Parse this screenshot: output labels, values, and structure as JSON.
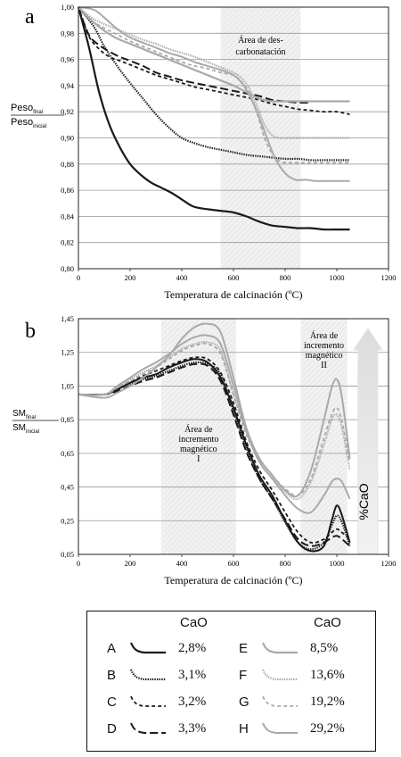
{
  "panel_a_letter": "a",
  "panel_b_letter": "b",
  "chart_data": [
    {
      "type": "line",
      "panel": "a",
      "ylabel_main": "Peso",
      "ylabel_main_sub": "final",
      "ylabel_den": "Peso",
      "ylabel_den_sub": "inicial",
      "xlabel": "Temperatura de calcinación (ºC)",
      "xlim": [
        0,
        1200
      ],
      "ylim": [
        0.8,
        1.0
      ],
      "x_ticks": [
        "0",
        "200",
        "400",
        "600",
        "800",
        "1000",
        "1200"
      ],
      "y_ticks": [
        "0,80",
        "0,82",
        "0,84",
        "0,86",
        "0,88",
        "0,90",
        "0,92",
        "0,94",
        "0,96",
        "0,98",
        "1,00"
      ],
      "grid": "horizontal",
      "region": {
        "x0": 550,
        "x1": 860,
        "label_line1": "Área de des-",
        "label_line2": "carbonatación"
      },
      "series": [
        {
          "name": "A",
          "color": "#1a1a1a",
          "style": "solid",
          "width": 2.2,
          "x": [
            0,
            40,
            80,
            120,
            160,
            200,
            240,
            280,
            320,
            360,
            400,
            440,
            480,
            520,
            560,
            600,
            650,
            700,
            750,
            800,
            850,
            900,
            950,
            1000,
            1050
          ],
          "y": [
            1.0,
            0.97,
            0.935,
            0.91,
            0.893,
            0.88,
            0.872,
            0.866,
            0.862,
            0.858,
            0.853,
            0.848,
            0.846,
            0.845,
            0.844,
            0.843,
            0.84,
            0.836,
            0.833,
            0.832,
            0.831,
            0.831,
            0.83,
            0.83,
            0.83
          ]
        },
        {
          "name": "B",
          "color": "#1a1a1a",
          "style": "dotted-dense",
          "width": 2.2,
          "x": [
            0,
            60,
            100,
            150,
            200,
            250,
            300,
            350,
            400,
            450,
            500,
            550,
            600,
            650,
            700,
            750,
            800,
            850,
            900,
            950,
            1000,
            1050
          ],
          "y": [
            1.0,
            0.985,
            0.97,
            0.955,
            0.942,
            0.93,
            0.918,
            0.908,
            0.9,
            0.896,
            0.893,
            0.891,
            0.889,
            0.887,
            0.886,
            0.885,
            0.884,
            0.884,
            0.883,
            0.883,
            0.883,
            0.883
          ]
        },
        {
          "name": "C",
          "color": "#1a1a1a",
          "style": "dashed-short",
          "width": 1.8,
          "x": [
            0,
            40,
            80,
            120,
            160,
            200,
            250,
            300,
            350,
            400,
            450,
            500,
            550,
            600,
            650,
            700,
            750,
            800,
            850,
            900,
            950,
            1000,
            1050
          ],
          "y": [
            1.0,
            0.978,
            0.968,
            0.962,
            0.959,
            0.956,
            0.952,
            0.948,
            0.945,
            0.942,
            0.939,
            0.937,
            0.935,
            0.933,
            0.931,
            0.929,
            0.926,
            0.924,
            0.922,
            0.921,
            0.92,
            0.92,
            0.918
          ]
        },
        {
          "name": "D",
          "color": "#1a1a1a",
          "style": "dashed-long",
          "width": 2.0,
          "x": [
            0,
            40,
            80,
            120,
            160,
            200,
            250,
            300,
            350,
            400,
            450,
            500,
            550,
            600,
            650,
            700,
            750,
            800,
            850,
            900
          ],
          "y": [
            1.0,
            0.979,
            0.971,
            0.966,
            0.962,
            0.959,
            0.955,
            0.95,
            0.947,
            0.944,
            0.942,
            0.94,
            0.938,
            0.936,
            0.934,
            0.932,
            0.929,
            0.928,
            0.927,
            0.927
          ]
        },
        {
          "name": "E",
          "color": "#a9a9a9",
          "style": "solid",
          "width": 2.2,
          "x": [
            0,
            50,
            100,
            150,
            200,
            250,
            300,
            350,
            400,
            450,
            500,
            550,
            600,
            650,
            700,
            750,
            800,
            850,
            900,
            950,
            1000,
            1050
          ],
          "y": [
            1.0,
            0.99,
            0.982,
            0.976,
            0.972,
            0.968,
            0.964,
            0.96,
            0.956,
            0.952,
            0.948,
            0.944,
            0.94,
            0.935,
            0.93,
            0.928,
            0.928,
            0.928,
            0.928,
            0.928,
            0.928,
            0.928
          ]
        },
        {
          "name": "F",
          "color": "#a9a9a9",
          "style": "dotted-dense",
          "width": 2.2,
          "x": [
            0,
            50,
            100,
            150,
            200,
            250,
            300,
            350,
            400,
            450,
            500,
            550,
            600,
            630,
            660,
            690,
            720,
            750,
            780,
            820,
            860,
            900,
            950,
            1000,
            1050
          ],
          "y": [
            1.0,
            0.992,
            0.987,
            0.983,
            0.979,
            0.975,
            0.972,
            0.968,
            0.965,
            0.962,
            0.958,
            0.954,
            0.95,
            0.946,
            0.938,
            0.925,
            0.91,
            0.902,
            0.9,
            0.9,
            0.9,
            0.9,
            0.9,
            0.9,
            0.9
          ]
        },
        {
          "name": "G",
          "color": "#a9a9a9",
          "style": "dashed-short",
          "width": 1.8,
          "x": [
            0,
            50,
            100,
            150,
            200,
            250,
            300,
            350,
            400,
            450,
            500,
            550,
            600,
            630,
            660,
            690,
            720,
            750,
            780,
            820,
            860,
            900,
            950,
            1000,
            1050
          ],
          "y": [
            1.0,
            0.99,
            0.984,
            0.979,
            0.974,
            0.97,
            0.966,
            0.962,
            0.958,
            0.955,
            0.953,
            0.95,
            0.948,
            0.943,
            0.935,
            0.92,
            0.9,
            0.888,
            0.882,
            0.881,
            0.881,
            0.881,
            0.881,
            0.881,
            0.881
          ]
        },
        {
          "name": "H",
          "color": "#a9a9a9",
          "style": "solid",
          "width": 2.0,
          "x": [
            0,
            60,
            100,
            140,
            180,
            220,
            260,
            300,
            350,
            400,
            450,
            500,
            550,
            600,
            640,
            680,
            720,
            760,
            800,
            840,
            880,
            920,
            960,
            1000,
            1050
          ],
          "y": [
            1.0,
            0.998,
            0.992,
            0.985,
            0.979,
            0.975,
            0.972,
            0.969,
            0.965,
            0.962,
            0.958,
            0.955,
            0.952,
            0.948,
            0.94,
            0.925,
            0.905,
            0.885,
            0.873,
            0.868,
            0.868,
            0.867,
            0.867,
            0.867,
            0.867
          ]
        }
      ]
    },
    {
      "type": "line",
      "panel": "b",
      "ylabel_main": "SM",
      "ylabel_main_sub": "final",
      "ylabel_den": "SM",
      "ylabel_den_sub": "inicial",
      "xlabel": "Temperatura de calcinación (ºC)",
      "xlim": [
        0,
        1200
      ],
      "ylim": [
        0.05,
        1.45
      ],
      "x_ticks": [
        "0",
        "200",
        "400",
        "600",
        "800",
        "1000",
        "1200"
      ],
      "y_ticks": [
        "0,05",
        "0,25",
        "0,45",
        "0,65",
        "0,85",
        "1,05",
        "1,25",
        "1,45"
      ],
      "grid": "horizontal",
      "regions": [
        {
          "x0": 320,
          "x1": 610,
          "label_line1": "Área de",
          "label_line2": "incremento",
          "label_line3": "magnético",
          "label_line4": "I"
        },
        {
          "x0": 860,
          "x1": 1040,
          "label_line1": "Área de",
          "label_line2": "incremento",
          "label_line3": "magnético",
          "label_line4": "II"
        }
      ],
      "arrow_label": "%CaO",
      "series": [
        {
          "name": "A",
          "color": "#1a1a1a",
          "style": "solid",
          "width": 2.0,
          "x": [
            0,
            100,
            150,
            200,
            250,
            300,
            350,
            400,
            450,
            500,
            550,
            600,
            650,
            700,
            750,
            800,
            850,
            900,
            950,
            980,
            1000,
            1020,
            1050
          ],
          "y": [
            1.0,
            1.0,
            1.03,
            1.07,
            1.1,
            1.12,
            1.16,
            1.19,
            1.21,
            1.19,
            1.1,
            0.92,
            0.7,
            0.52,
            0.4,
            0.25,
            0.12,
            0.07,
            0.1,
            0.25,
            0.34,
            0.28,
            0.12
          ]
        },
        {
          "name": "B",
          "color": "#1a1a1a",
          "style": "dotted-dense",
          "width": 2.0,
          "x": [
            0,
            100,
            150,
            200,
            250,
            300,
            350,
            400,
            450,
            500,
            550,
            600,
            650,
            700,
            750,
            800,
            850,
            900,
            950,
            980,
            1000,
            1020,
            1050
          ],
          "y": [
            1.0,
            1.0,
            1.03,
            1.06,
            1.09,
            1.11,
            1.14,
            1.17,
            1.19,
            1.18,
            1.12,
            0.9,
            0.68,
            0.5,
            0.38,
            0.24,
            0.12,
            0.08,
            0.12,
            0.22,
            0.28,
            0.24,
            0.1
          ]
        },
        {
          "name": "C",
          "color": "#1a1a1a",
          "style": "dashed-short",
          "width": 1.8,
          "x": [
            0,
            100,
            150,
            200,
            250,
            300,
            350,
            400,
            450,
            500,
            550,
            600,
            650,
            700,
            750,
            800,
            850,
            900,
            950,
            980,
            1000,
            1020,
            1050
          ],
          "y": [
            1.0,
            1.0,
            1.04,
            1.08,
            1.11,
            1.14,
            1.17,
            1.2,
            1.22,
            1.21,
            1.13,
            0.95,
            0.72,
            0.55,
            0.43,
            0.3,
            0.18,
            0.12,
            0.14,
            0.18,
            0.2,
            0.18,
            0.14
          ]
        },
        {
          "name": "D",
          "color": "#1a1a1a",
          "style": "dashed-long",
          "width": 2.0,
          "x": [
            0,
            100,
            150,
            200,
            250,
            300,
            350,
            400,
            450,
            500,
            550,
            600,
            650,
            700,
            750,
            800,
            850,
            900,
            950,
            980,
            1000,
            1020,
            1050
          ],
          "y": [
            1.0,
            1.0,
            1.02,
            1.05,
            1.08,
            1.1,
            1.13,
            1.16,
            1.18,
            1.17,
            1.08,
            0.88,
            0.66,
            0.5,
            0.38,
            0.26,
            0.14,
            0.1,
            0.12,
            0.15,
            0.16,
            0.14,
            0.1
          ]
        },
        {
          "name": "E",
          "color": "#a9a9a9",
          "style": "solid",
          "width": 2.0,
          "x": [
            0,
            100,
            150,
            200,
            250,
            300,
            350,
            400,
            450,
            500,
            550,
            600,
            650,
            700,
            750,
            800,
            850,
            900,
            950,
            980,
            1000,
            1020,
            1050
          ],
          "y": [
            1.0,
            1.0,
            1.05,
            1.1,
            1.15,
            1.19,
            1.24,
            1.3,
            1.34,
            1.35,
            1.3,
            1.05,
            0.78,
            0.6,
            0.5,
            0.4,
            0.32,
            0.3,
            0.4,
            0.48,
            0.5,
            0.48,
            0.38
          ]
        },
        {
          "name": "F",
          "color": "#a9a9a9",
          "style": "dotted-dense",
          "width": 2.0,
          "x": [
            0,
            100,
            150,
            200,
            250,
            300,
            350,
            400,
            450,
            500,
            550,
            600,
            650,
            700,
            750,
            800,
            850,
            900,
            950,
            980,
            1000,
            1020,
            1050
          ],
          "y": [
            1.0,
            1.0,
            1.04,
            1.09,
            1.13,
            1.17,
            1.22,
            1.27,
            1.3,
            1.31,
            1.26,
            1.0,
            0.78,
            0.62,
            0.52,
            0.42,
            0.38,
            0.48,
            0.7,
            0.85,
            0.88,
            0.8,
            0.55
          ]
        },
        {
          "name": "G",
          "color": "#a9a9a9",
          "style": "dashed-short",
          "width": 1.8,
          "x": [
            0,
            100,
            150,
            200,
            250,
            300,
            350,
            400,
            450,
            500,
            550,
            600,
            650,
            700,
            750,
            800,
            850,
            900,
            950,
            980,
            1000,
            1020,
            1050
          ],
          "y": [
            1.0,
            1.0,
            1.04,
            1.08,
            1.12,
            1.16,
            1.21,
            1.26,
            1.29,
            1.3,
            1.24,
            1.0,
            0.76,
            0.62,
            0.52,
            0.44,
            0.4,
            0.5,
            0.74,
            0.88,
            0.92,
            0.84,
            0.6
          ]
        },
        {
          "name": "H",
          "color": "#a9a9a9",
          "style": "solid",
          "width": 2.0,
          "x": [
            0,
            100,
            150,
            200,
            250,
            300,
            350,
            400,
            450,
            500,
            550,
            600,
            650,
            700,
            750,
            800,
            850,
            900,
            950,
            980,
            1000,
            1020,
            1050
          ],
          "y": [
            1.0,
            0.98,
            1.01,
            1.05,
            1.1,
            1.16,
            1.23,
            1.33,
            1.4,
            1.42,
            1.37,
            1.1,
            0.8,
            0.62,
            0.52,
            0.43,
            0.4,
            0.55,
            0.85,
            1.04,
            1.09,
            0.98,
            0.62
          ]
        }
      ]
    }
  ],
  "legend": {
    "header_left": "CaO",
    "header_right": "CaO",
    "items": [
      {
        "letter": "A",
        "value": "2,8%",
        "series": "A"
      },
      {
        "letter": "B",
        "value": "3,1%",
        "series": "B"
      },
      {
        "letter": "C",
        "value": "3,2%",
        "series": "C"
      },
      {
        "letter": "D",
        "value": "3,3%",
        "series": "D"
      },
      {
        "letter": "E",
        "value": "8,5%",
        "series": "E"
      },
      {
        "letter": "F",
        "value": "13,6%",
        "series": "F"
      },
      {
        "letter": "G",
        "value": "19,2%",
        "series": "G"
      },
      {
        "letter": "H",
        "value": "29,2%",
        "series": "H"
      }
    ]
  }
}
